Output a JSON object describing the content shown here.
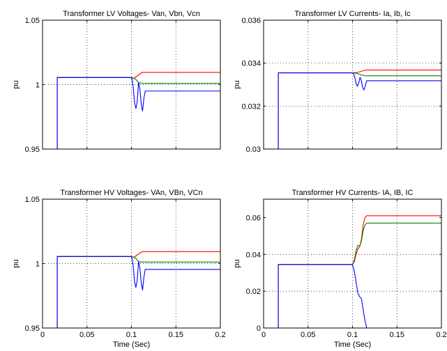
{
  "figure": {
    "background": "#ffffff",
    "xlabel": "Time (Sec)"
  },
  "series_colors": {
    "a": "#ff0000",
    "b": "#008000",
    "c": "#0000ff"
  },
  "chart_data": [
    {
      "type": "line",
      "title": "Transformer LV Voltages- Van, Vbn, Vcn",
      "ylabel": "pu",
      "xlabel": "",
      "xlim": [
        0,
        0.2
      ],
      "ylim": [
        0.95,
        1.05
      ],
      "xticks": [
        0,
        0.05,
        0.1,
        0.15,
        0.2
      ],
      "xtick_labels": [],
      "yticks": [
        0.95,
        1,
        1.05
      ],
      "ytick_labels": [
        "0.95",
        "1",
        "1.05"
      ],
      "grid": true,
      "series": [
        {
          "color": "#ff0000",
          "x": [
            0,
            0.0165,
            0.0165,
            0.1,
            0.103,
            0.108,
            0.112,
            0.2
          ],
          "y": [
            0.95,
            0.95,
            1.0055,
            1.0055,
            1.005,
            1.0075,
            1.0095,
            1.0095
          ]
        },
        {
          "color": "#008000",
          "x": [
            0,
            0.0165,
            0.0165,
            0.1,
            0.102,
            0.105,
            0.108,
            0.112,
            0.2
          ],
          "y": [
            0.95,
            0.95,
            1.0055,
            1.0055,
            1.005,
            1.004,
            1.0015,
            1.001,
            1.001
          ]
        },
        {
          "color": "#0000ff",
          "x": [
            0,
            0.0165,
            0.0165,
            0.1,
            0.101,
            0.102,
            0.1035,
            0.105,
            0.1065,
            0.108,
            0.1095,
            0.111,
            0.1125,
            0.114,
            0.1155,
            0.2
          ],
          "y": [
            0.95,
            0.95,
            1.0055,
            1.0055,
            1.003,
            0.998,
            0.986,
            0.9815,
            0.987,
            1.0015,
            0.9965,
            0.985,
            0.9795,
            0.9895,
            0.995,
            0.995
          ]
        }
      ]
    },
    {
      "type": "line",
      "title": "Transformer LV Currents- Ia, Ib, Ic",
      "ylabel": "pu",
      "xlabel": "",
      "xlim": [
        0,
        0.2
      ],
      "ylim": [
        0.03,
        0.036
      ],
      "xticks": [
        0,
        0.05,
        0.1,
        0.15,
        0.2
      ],
      "xtick_labels": [],
      "yticks": [
        0.03,
        0.032,
        0.034,
        0.036
      ],
      "ytick_labels": [
        "0.03",
        "0.032",
        "0.034",
        "0.036"
      ],
      "grid": true,
      "series": [
        {
          "color": "#ff0000",
          "x": [
            0,
            0.0165,
            0.0165,
            0.1,
            0.105,
            0.11,
            0.115,
            0.2
          ],
          "y": [
            0.03,
            0.03,
            0.03355,
            0.03355,
            0.03356,
            0.03362,
            0.03368,
            0.03368
          ]
        },
        {
          "color": "#008000",
          "x": [
            0,
            0.0165,
            0.0165,
            0.1,
            0.105,
            0.11,
            0.115,
            0.2
          ],
          "y": [
            0.03,
            0.03,
            0.03355,
            0.03355,
            0.03352,
            0.03345,
            0.03341,
            0.03341
          ]
        },
        {
          "color": "#0000ff",
          "x": [
            0,
            0.0165,
            0.0165,
            0.1,
            0.101,
            0.1025,
            0.104,
            0.1055,
            0.107,
            0.1085,
            0.11,
            0.1115,
            0.113,
            0.1145,
            0.116,
            0.2
          ],
          "y": [
            0.03,
            0.03,
            0.03355,
            0.03355,
            0.03352,
            0.03335,
            0.03305,
            0.03292,
            0.03308,
            0.03334,
            0.03318,
            0.03285,
            0.03275,
            0.03296,
            0.03318,
            0.03318
          ]
        }
      ]
    },
    {
      "type": "line",
      "title": "Transformer HV Voltages- VAn, VBn, VCn",
      "ylabel": "pu",
      "xlabel": "Time (Sec)",
      "xlim": [
        0,
        0.2
      ],
      "ylim": [
        0.95,
        1.05
      ],
      "xticks": [
        0,
        0.05,
        0.1,
        0.15,
        0.2
      ],
      "xtick_labels": [
        "0",
        "0.05",
        "0.1",
        "0.15",
        "0.2"
      ],
      "yticks": [
        0.95,
        1,
        1.05
      ],
      "ytick_labels": [
        "0.95",
        "1",
        "1.05"
      ],
      "grid": true,
      "series": [
        {
          "color": "#ff0000",
          "x": [
            0,
            0.0165,
            0.0165,
            0.1,
            0.103,
            0.108,
            0.112,
            0.2
          ],
          "y": [
            0.95,
            0.95,
            1.0055,
            1.0055,
            1.005,
            1.0075,
            1.0093,
            1.0093
          ]
        },
        {
          "color": "#008000",
          "x": [
            0,
            0.0165,
            0.0165,
            0.1,
            0.102,
            0.105,
            0.108,
            0.112,
            0.2
          ],
          "y": [
            0.95,
            0.95,
            1.0055,
            1.0055,
            1.005,
            1.004,
            1.0015,
            1.0012,
            1.0012
          ]
        },
        {
          "color": "#0000ff",
          "x": [
            0,
            0.0165,
            0.0165,
            0.1,
            0.101,
            0.102,
            0.1035,
            0.105,
            0.1065,
            0.108,
            0.1095,
            0.111,
            0.1125,
            0.114,
            0.1155,
            0.2
          ],
          "y": [
            0.95,
            0.95,
            1.0055,
            1.0055,
            1.003,
            0.998,
            0.986,
            0.9815,
            0.987,
            1.0015,
            0.9965,
            0.985,
            0.9795,
            0.9895,
            0.9955,
            0.9955
          ]
        }
      ]
    },
    {
      "type": "line",
      "title": "Transformer HV Currents- IA, IB, IC",
      "ylabel": "pu",
      "xlabel": "Time (Sec)",
      "xlim": [
        0,
        0.2
      ],
      "ylim": [
        0,
        0.07
      ],
      "xticks": [
        0,
        0.05,
        0.1,
        0.15,
        0.2
      ],
      "xtick_labels": [
        "0",
        "0.05",
        "0.1",
        "0.15",
        "0.2"
      ],
      "yticks": [
        0,
        0.02,
        0.04,
        0.06
      ],
      "ytick_labels": [
        "0",
        "0.02",
        "0.04",
        "0.06"
      ],
      "grid": true,
      "series": [
        {
          "color": "#ff0000",
          "x": [
            0,
            0.0165,
            0.0165,
            0.1,
            0.102,
            0.104,
            0.106,
            0.108,
            0.11,
            0.112,
            0.114,
            0.116,
            0.2
          ],
          "y": [
            0,
            0,
            0.0345,
            0.0345,
            0.036,
            0.04,
            0.043,
            0.044,
            0.048,
            0.056,
            0.06,
            0.061,
            0.061
          ]
        },
        {
          "color": "#008000",
          "x": [
            0,
            0.0165,
            0.0165,
            0.1,
            0.102,
            0.104,
            0.106,
            0.108,
            0.11,
            0.112,
            0.114,
            0.116,
            0.2
          ],
          "y": [
            0,
            0,
            0.0345,
            0.0345,
            0.037,
            0.042,
            0.045,
            0.0445,
            0.047,
            0.053,
            0.056,
            0.057,
            0.057
          ]
        },
        {
          "color": "#0000ff",
          "x": [
            0,
            0.0165,
            0.0165,
            0.1,
            0.102,
            0.104,
            0.106,
            0.108,
            0.11,
            0.112,
            0.114,
            0.116,
            0.2
          ],
          "y": [
            0,
            0,
            0.0345,
            0.0345,
            0.031,
            0.025,
            0.019,
            0.017,
            0.016,
            0.01,
            0.004,
            0,
            0
          ]
        }
      ]
    }
  ]
}
